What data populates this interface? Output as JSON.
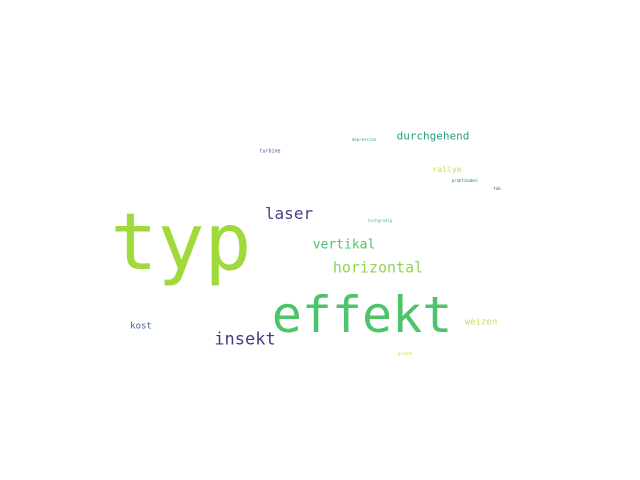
{
  "words": [
    {
      "text": "typ",
      "color": "#a0d93a"
    },
    {
      "text": "effekt",
      "color": "#4ec46a"
    },
    {
      "text": "insekt",
      "color": "#48397f"
    },
    {
      "text": "laser",
      "color": "#4a3f84"
    },
    {
      "text": "horizontal",
      "color": "#8ed64e"
    },
    {
      "text": "vertikal",
      "color": "#4ec46a"
    },
    {
      "text": "durchgehend",
      "color": "#2a9c82"
    },
    {
      "text": "kost",
      "color": "#3b5a8e"
    },
    {
      "text": "weizen",
      "color": "#c9dc4a"
    },
    {
      "text": "rallye",
      "color": "#c9dc4a"
    },
    {
      "text": "turbine",
      "color": "#3b5a8e"
    },
    {
      "text": "depression",
      "color": "#2a9c82"
    },
    {
      "text": "praktikabel",
      "color": "#2a7d8e"
    },
    {
      "text": "tab",
      "color": "#3b5a8e"
    },
    {
      "text": "hochgradig",
      "color": "#4ec46a"
    },
    {
      "text": "gruene",
      "color": "#e5d830"
    }
  ]
}
